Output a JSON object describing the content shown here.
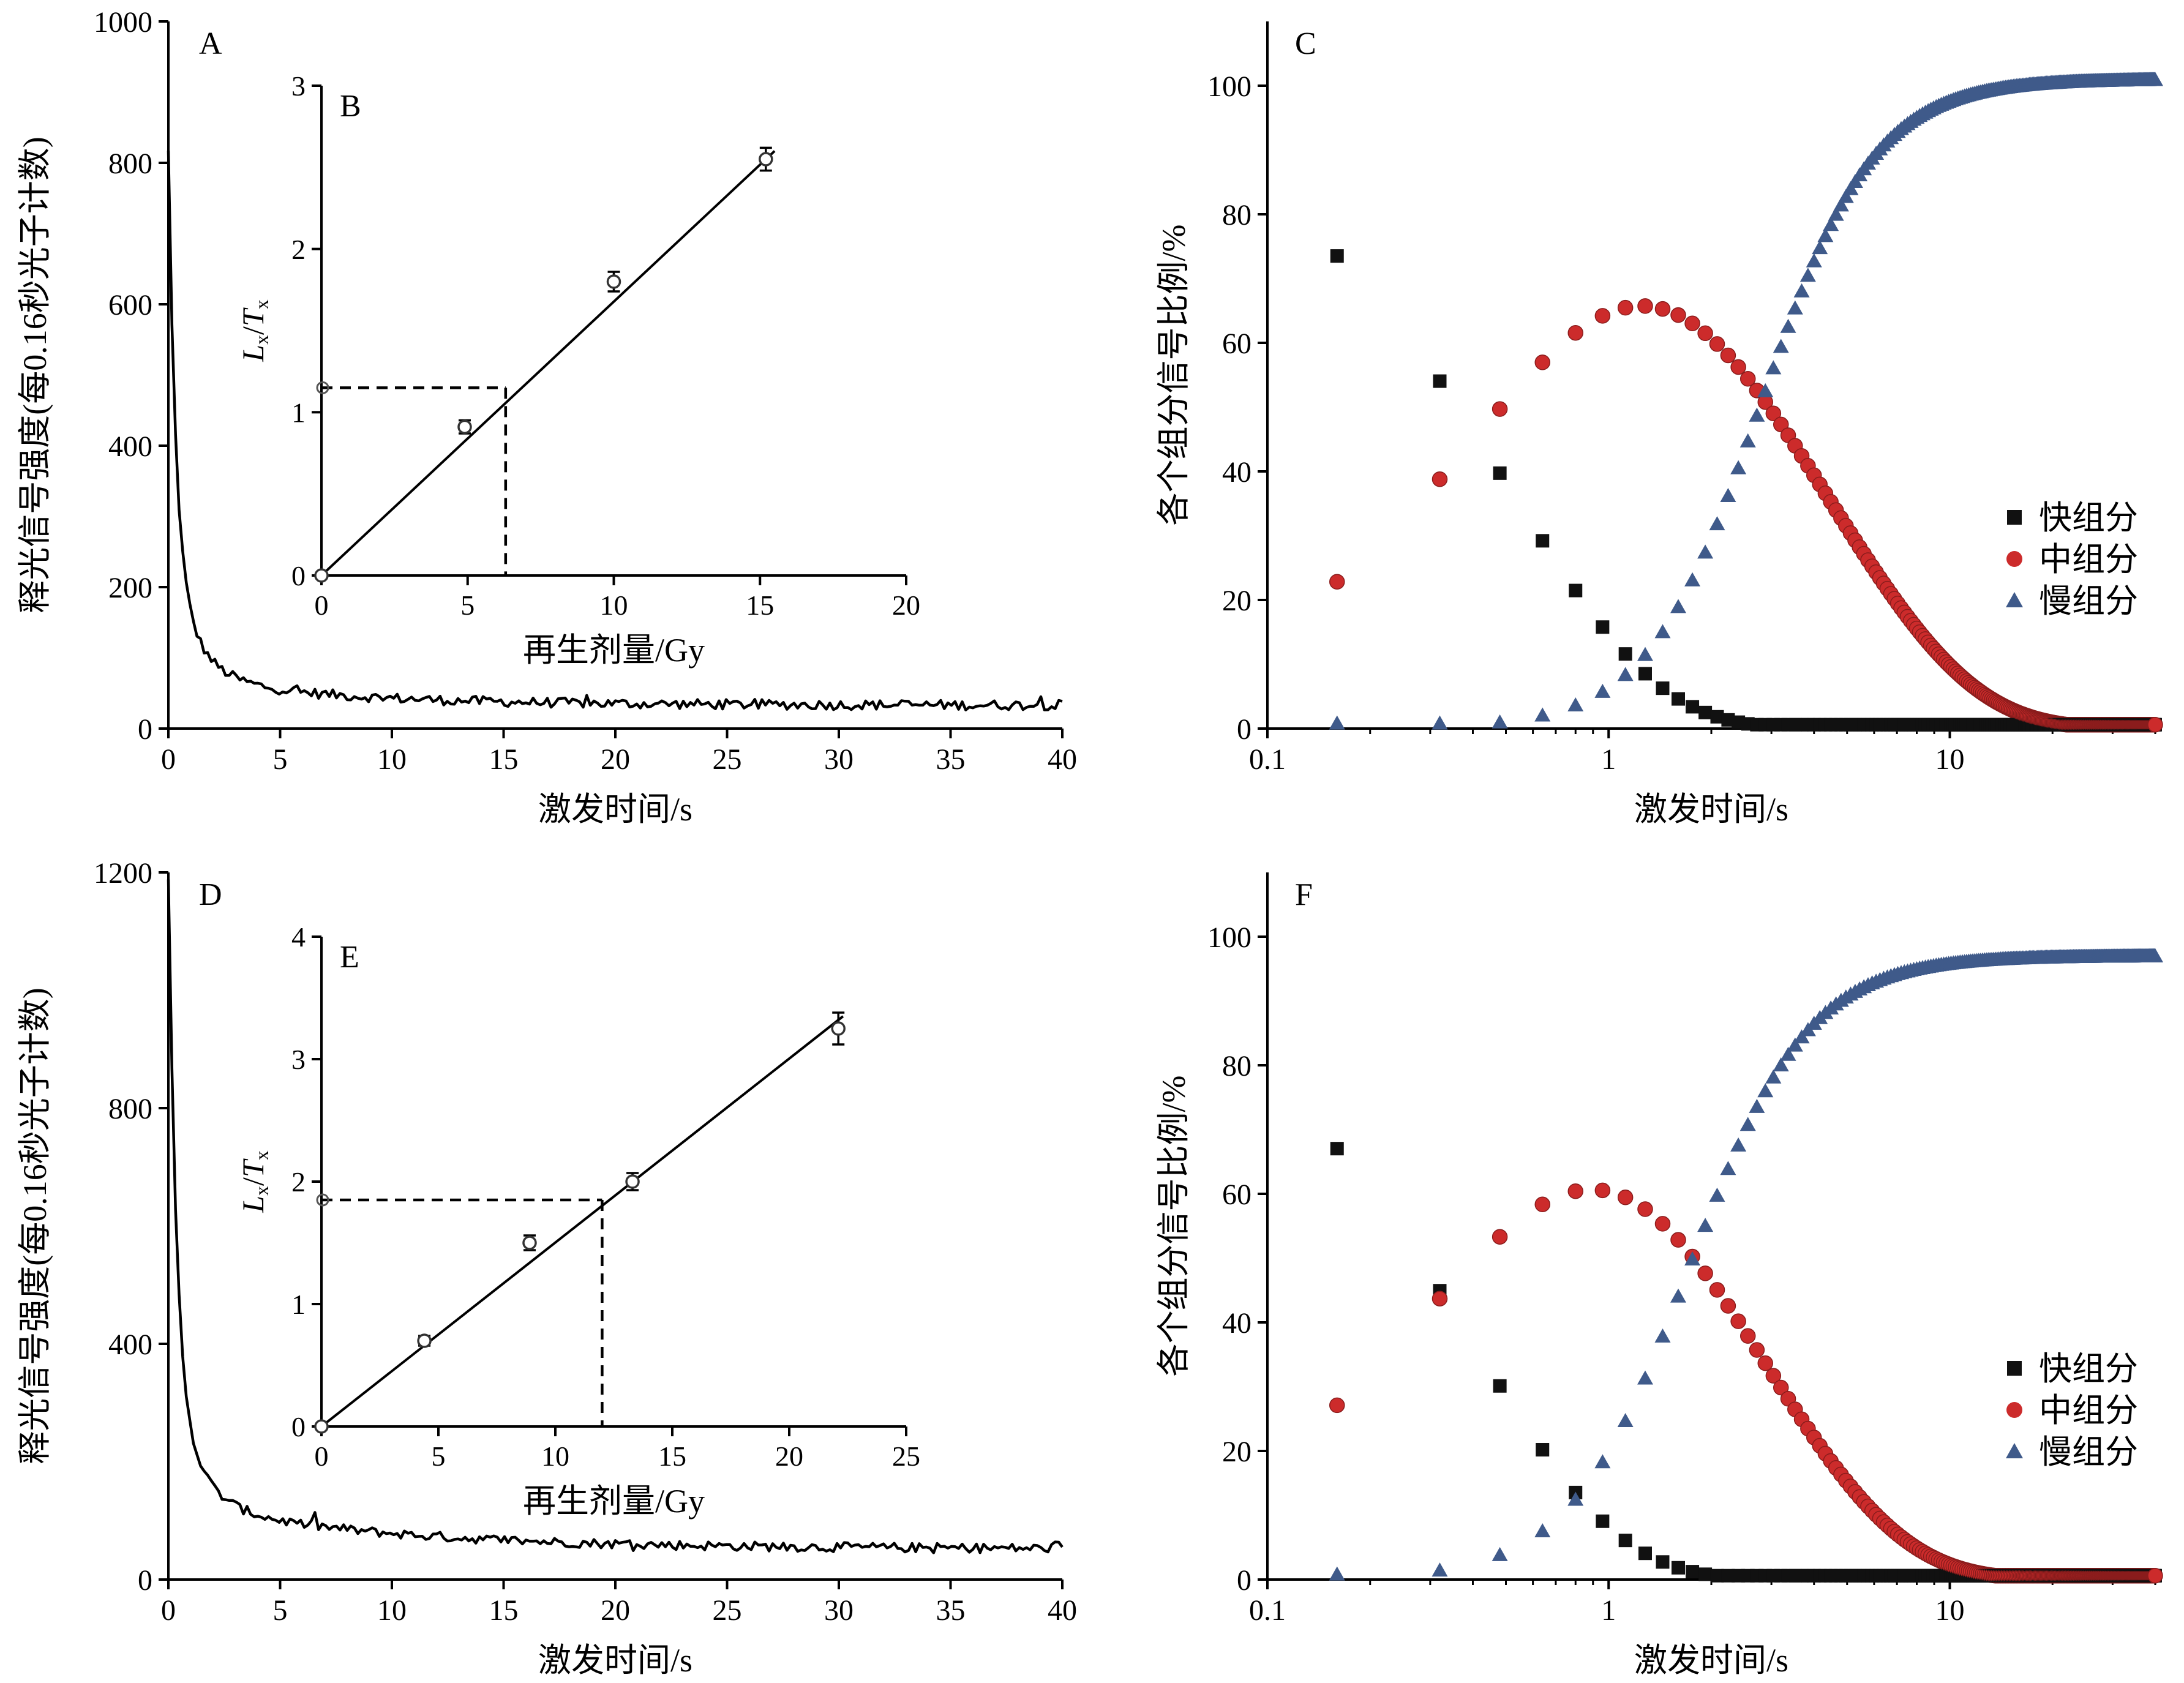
{
  "chart_data": [
    {
      "panel": "A",
      "type": "line",
      "xlabel": "激发时间/s",
      "ylabel": "释光信号强度(每0.16秒光子计数)",
      "xlim": [
        0,
        40
      ],
      "ylim": [
        0,
        1000
      ],
      "xticks": [
        0,
        5,
        10,
        15,
        20,
        25,
        30,
        35,
        40
      ],
      "yticks": [
        0,
        200,
        400,
        600,
        800,
        1000
      ],
      "decay": {
        "a1": 560,
        "t1": 0.32,
        "a2": 180,
        "t2": 1.1,
        "a3": 42,
        "t3": 7.0,
        "base": 33,
        "noise": 7
      }
    },
    {
      "panel": "B",
      "type": "scatter",
      "inset_of": "A",
      "xlabel": "再生剂量/Gy",
      "ylabel_main": "L",
      "ylabel_sub1": "x",
      "ylabel_sep": "/",
      "ylabel_main2": "T",
      "ylabel_sub2": "x",
      "xlim": [
        0,
        20
      ],
      "ylim": [
        0,
        3
      ],
      "xticks": [
        0,
        5,
        10,
        15,
        20
      ],
      "yticks": [
        0,
        1,
        2,
        3
      ],
      "points": [
        {
          "x": 0,
          "y": 0
        },
        {
          "x": 4.9,
          "y": 0.91,
          "err": 0.04
        },
        {
          "x": 10.0,
          "y": 1.8,
          "err": 0.06
        },
        {
          "x": 15.2,
          "y": 2.55,
          "err": 0.07
        }
      ],
      "natural": {
        "x": 6.3,
        "y": 1.15
      },
      "fit": [
        [
          0,
          0
        ],
        [
          15.5,
          2.6
        ]
      ]
    },
    {
      "panel": "C",
      "type": "scatter",
      "xlabel": "激发时间/s",
      "ylabel": "各个组分信号比例/%",
      "xscale": "log",
      "xlim": [
        0.1,
        40
      ],
      "ylim": [
        0,
        110
      ],
      "xticks": [
        0.1,
        1,
        10
      ],
      "xtick_labels": [
        "0.1",
        "1",
        "10"
      ],
      "yticks": [
        0,
        20,
        40,
        60,
        80,
        100
      ],
      "legend": [
        "快组分",
        "中组分",
        "慢组分"
      ],
      "legend_position": "right",
      "components": {
        "tf": 0.52,
        "tm": 4.3,
        "sigma": 0.38,
        "slow_max": 101
      }
    },
    {
      "panel": "D",
      "type": "line",
      "xlabel": "激发时间/s",
      "ylabel": "释光信号强度(每0.16秒光子计数)",
      "xlim": [
        0,
        40
      ],
      "ylim": [
        0,
        1200
      ],
      "xticks": [
        0,
        5,
        10,
        15,
        20,
        25,
        30,
        35,
        40
      ],
      "yticks": [
        0,
        400,
        800,
        1200
      ],
      "decay": {
        "a1": 850,
        "t1": 0.32,
        "a2": 250,
        "t2": 1.1,
        "a3": 80,
        "t3": 9.0,
        "base": 52,
        "noise": 8
      }
    },
    {
      "panel": "E",
      "type": "scatter",
      "inset_of": "D",
      "xlabel": "再生剂量/Gy",
      "ylabel_main": "L",
      "ylabel_sub1": "x",
      "ylabel_sep": "/",
      "ylabel_main2": "T",
      "ylabel_sub2": "x",
      "xlim": [
        0,
        25
      ],
      "ylim": [
        0,
        4
      ],
      "xticks": [
        0,
        5,
        10,
        15,
        20,
        25
      ],
      "yticks": [
        0,
        1,
        2,
        3,
        4
      ],
      "points": [
        {
          "x": 0,
          "y": 0
        },
        {
          "x": 4.4,
          "y": 0.7,
          "err": 0.04
        },
        {
          "x": 8.9,
          "y": 1.5,
          "err": 0.06
        },
        {
          "x": 13.3,
          "y": 2.0,
          "err": 0.07
        },
        {
          "x": 22.1,
          "y": 3.25,
          "err": 0.13
        }
      ],
      "natural": {
        "x": 12.0,
        "y": 1.85
      },
      "fit": [
        [
          0,
          0
        ],
        [
          22.3,
          3.35
        ]
      ]
    },
    {
      "panel": "F",
      "type": "scatter",
      "xlabel": "激发时间/s",
      "ylabel": "各个组分信号比例/%",
      "xscale": "log",
      "xlim": [
        0.1,
        40
      ],
      "ylim": [
        0,
        110
      ],
      "xticks": [
        0.1,
        1,
        10
      ],
      "xtick_labels": [
        "0.1",
        "1",
        "10"
      ],
      "yticks": [
        0,
        20,
        40,
        60,
        80,
        100
      ],
      "legend": [
        "快组分",
        "中组分",
        "慢组分"
      ],
      "legend_position": "right",
      "components": {
        "tf": 0.4,
        "tm": 2.65,
        "sigma": 0.4,
        "slow_max": 97
      }
    }
  ],
  "colors": {
    "fast": "#111111",
    "medium": "#cc2b2b",
    "slow": "#3f5a8a"
  }
}
